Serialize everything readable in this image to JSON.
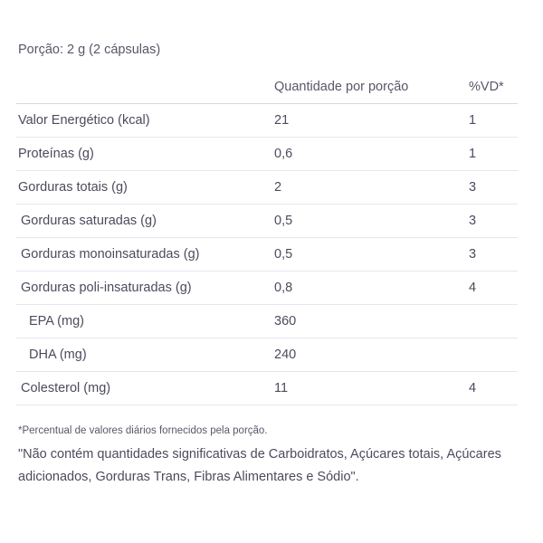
{
  "portion": "Porção: 2 g (2 cápsulas)",
  "header": {
    "name": "",
    "quantity": "Quantidade por porção",
    "vd": "%VD*"
  },
  "rows": [
    {
      "name": "Valor Energético (kcal)",
      "qty": "21",
      "vd": "1"
    },
    {
      "name": "Proteínas (g)",
      "qty": "0,6",
      "vd": "1"
    },
    {
      "name": "Gorduras totais (g)",
      "qty": "2",
      "vd": "3"
    },
    {
      "name": "Gorduras saturadas (g)",
      "qty": "0,5",
      "vd": "3"
    },
    {
      "name": "Gorduras monoinsaturadas (g)",
      "qty": "0,5",
      "vd": "3"
    },
    {
      "name": "Gorduras poli-insaturadas (g)",
      "qty": "0,8",
      "vd": "4"
    },
    {
      "name": "EPA (mg)",
      "qty": "360",
      "vd": ""
    },
    {
      "name": "DHA (mg)",
      "qty": "240",
      "vd": ""
    },
    {
      "name": "Colesterol (mg)",
      "qty": "11",
      "vd": "4"
    }
  ],
  "footnote": "*Percentual de valores diários fornecidos pela porção.",
  "notice": "\"Não contém quantidades significativas de Carboidratos, Açúcares totais, Açúcares adicionados, Gorduras Trans, Fibras Alimentares e Sódio\"."
}
